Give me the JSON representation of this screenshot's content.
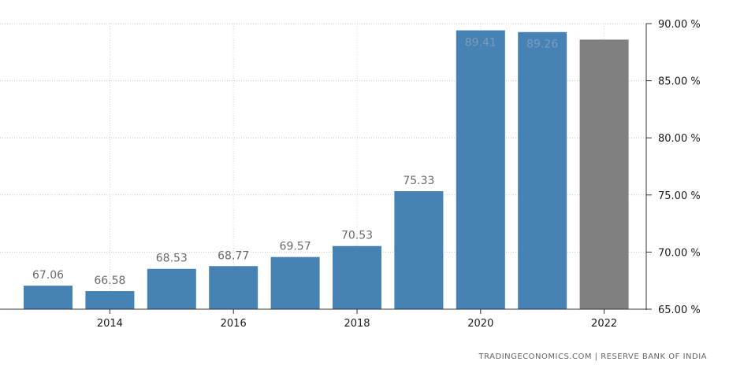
{
  "chart_data": {
    "type": "bar",
    "categories": [
      "2013",
      "2014",
      "2015",
      "2016",
      "2017",
      "2018",
      "2019",
      "2020",
      "2021",
      "2022"
    ],
    "values": [
      67.06,
      66.58,
      68.53,
      68.77,
      69.57,
      70.53,
      75.33,
      89.41,
      89.26,
      88.6
    ],
    "data_labels": [
      "67.06",
      "66.58",
      "68.53",
      "68.77",
      "69.57",
      "70.53",
      "75.33",
      "89.41",
      "89.26",
      ""
    ],
    "bar_colors": [
      "#4682b4",
      "#4682b4",
      "#4682b4",
      "#4682b4",
      "#4682b4",
      "#4682b4",
      "#4682b4",
      "#4682b4",
      "#4682b4",
      "#808080"
    ],
    "x_tick_labels": [
      "2014",
      "2016",
      "2018",
      "2020",
      "2022"
    ],
    "y_ticks": [
      {
        "value": 90,
        "label": "90.00 %"
      },
      {
        "value": 85,
        "label": "85.00 %"
      },
      {
        "value": 80,
        "label": "80.00 %"
      },
      {
        "value": 75,
        "label": "75.00 %"
      },
      {
        "value": 70,
        "label": "70.00 %"
      },
      {
        "value": 65,
        "label": "65.00 %"
      }
    ],
    "ylim": [
      65,
      90
    ],
    "y_axis_side": "right",
    "grid": true,
    "title": "",
    "xlabel": "",
    "ylabel": ""
  },
  "source": "TRADINGECONOMICS.COM  |  RESERVE BANK OF INDIA"
}
